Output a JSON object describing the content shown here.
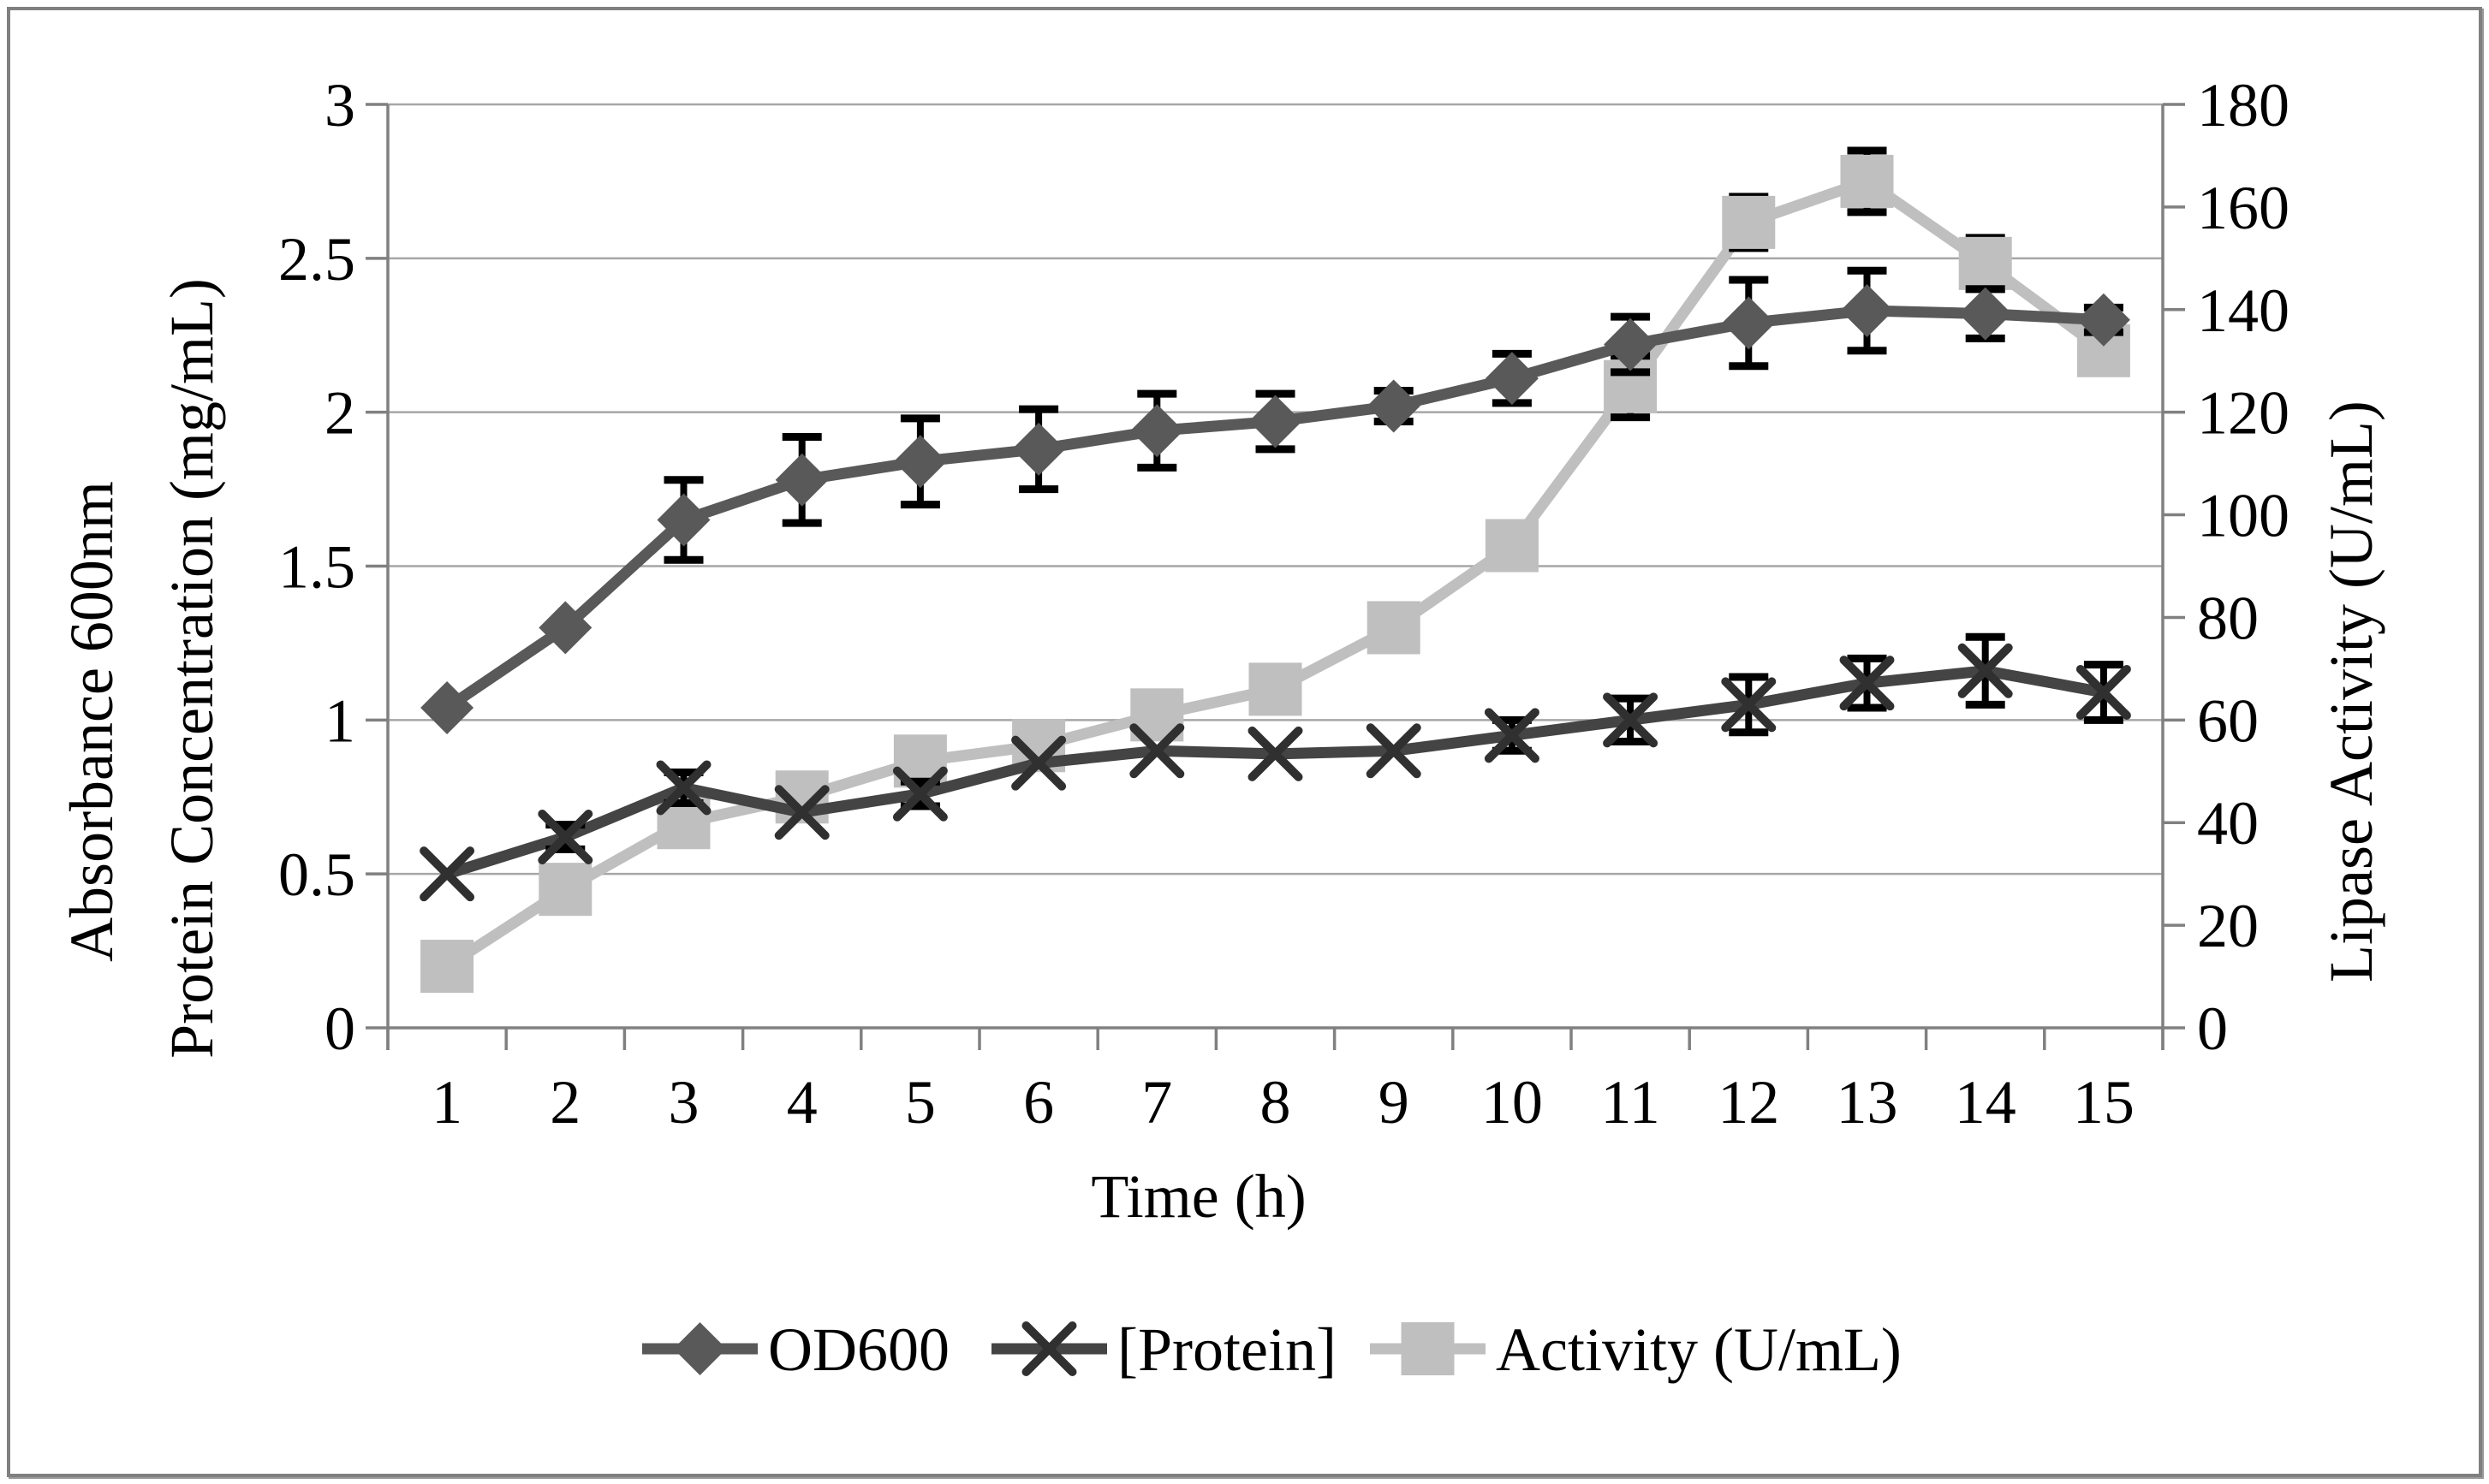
{
  "chart_data": {
    "type": "line",
    "title": "",
    "xlabel": "Time (h)",
    "ylabel_left_outer": "Absorbance 600nm",
    "ylabel_left_inner": "Protein Concentration (mg/mL)",
    "ylabel_right": "Lipase Activity (U/mL)",
    "x": [
      1,
      2,
      3,
      4,
      5,
      6,
      7,
      8,
      9,
      10,
      11,
      12,
      13,
      14,
      15
    ],
    "axes": {
      "left": {
        "min": 0,
        "max": 3,
        "step": 0.5,
        "ticks": [
          "0",
          "0.5",
          "1",
          "1.5",
          "2",
          "2.5",
          "3"
        ]
      },
      "right": {
        "min": 0,
        "max": 180,
        "step": 20,
        "ticks": [
          "0",
          "20",
          "40",
          "60",
          "80",
          "100",
          "120",
          "140",
          "160",
          "180"
        ]
      },
      "x_ticks": [
        "1",
        "2",
        "3",
        "4",
        "5",
        "6",
        "7",
        "8",
        "9",
        "10",
        "11",
        "12",
        "13",
        "14",
        "15"
      ]
    },
    "grid": true,
    "legend_position": "bottom",
    "series": [
      {
        "name": "OD600",
        "axis": "left",
        "marker": "diamond",
        "color": "#595959",
        "marker_color": "#595959",
        "values": [
          1.04,
          1.3,
          1.65,
          1.78,
          1.84,
          1.88,
          1.94,
          1.97,
          2.02,
          2.11,
          2.22,
          2.29,
          2.33,
          2.32,
          2.3
        ],
        "errors": [
          0,
          0,
          0.13,
          0.14,
          0.14,
          0.13,
          0.12,
          0.09,
          0.05,
          0.08,
          0.09,
          0.14,
          0.13,
          0.08,
          0.04
        ]
      },
      {
        "name": "[Protein]",
        "axis": "left",
        "marker": "x",
        "color": "#444444",
        "marker_color": "#303030",
        "values": [
          0.5,
          0.62,
          0.78,
          0.7,
          0.76,
          0.86,
          0.9,
          0.89,
          0.9,
          0.95,
          1.0,
          1.05,
          1.12,
          1.16,
          1.09
        ],
        "errors": [
          0,
          0.04,
          0.05,
          0,
          0.04,
          0,
          0,
          0,
          0,
          0.05,
          0.07,
          0.09,
          0.08,
          0.11,
          0.09
        ]
      },
      {
        "name": "Activity (U/mL)",
        "axis": "right",
        "marker": "square",
        "color": "#bfbfbf",
        "marker_color": "#bfbfbf",
        "values": [
          12,
          27,
          40,
          45,
          52,
          55,
          61,
          66,
          78,
          94,
          125,
          157,
          165,
          149,
          132
        ],
        "errors": [
          0,
          0,
          0,
          0,
          0,
          0,
          0,
          0,
          0,
          0,
          6,
          5,
          6,
          5,
          4
        ]
      }
    ]
  },
  "colors": {
    "background": "#ffffff",
    "gridline": "#a6a6a6",
    "axis": "#808080",
    "error_bar": "#000000",
    "text": "#000000",
    "frame_border": "#808080"
  }
}
